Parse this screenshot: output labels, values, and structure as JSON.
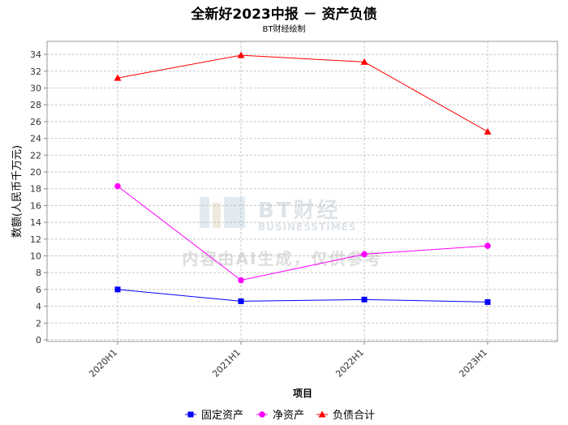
{
  "chart_data": {
    "type": "line",
    "title": "全新好2023中报 － 资产负债",
    "subtitle": "BT财经绘制",
    "xlabel": "项目",
    "ylabel": "数额(人民币千万元)",
    "categories": [
      "2020H1",
      "2021H1",
      "2022H1",
      "2023H1"
    ],
    "ylim": [
      0,
      35
    ],
    "yticks": [
      0,
      2,
      4,
      6,
      8,
      10,
      12,
      14,
      16,
      18,
      20,
      22,
      24,
      26,
      28,
      30,
      32,
      34
    ],
    "grid": true,
    "legend_position": "bottom",
    "series": [
      {
        "name": "固定资产",
        "values": [
          6.0,
          4.6,
          4.8,
          4.5
        ],
        "color": "#0000ff",
        "marker": "square"
      },
      {
        "name": "净资产",
        "values": [
          18.3,
          7.1,
          10.2,
          11.2
        ],
        "color": "#ff00ff",
        "marker": "circle"
      },
      {
        "name": "负债合计",
        "values": [
          31.2,
          33.9,
          33.1,
          24.8
        ],
        "color": "#ff0000",
        "marker": "triangle"
      }
    ]
  },
  "watermark": {
    "brand_cn": "BT财经",
    "brand_en": "BUSINESSTIMES",
    "notice": "内容由AI生成，仅供参考"
  }
}
